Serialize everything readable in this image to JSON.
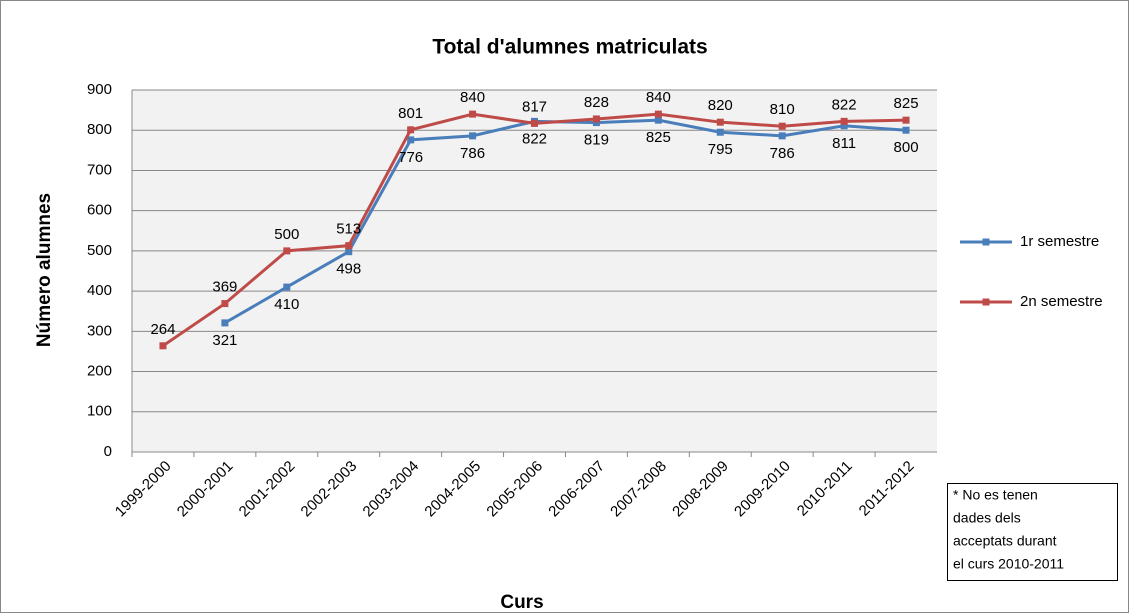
{
  "chart_data": {
    "type": "line",
    "title": "Total d'alumnes matriculats",
    "x_label": "Curs",
    "y_label": "Número alumnes",
    "categories": [
      "1999-2000",
      "2000-2001",
      "2001-2002",
      "2002-2003",
      "2003-2004",
      "2004-2005",
      "2005-2006",
      "2006-2007",
      "2007-2008",
      "2008-2009",
      "2009-2010",
      "2010-2011",
      "2011-2012"
    ],
    "series": [
      {
        "name": "1r semestre",
        "color": "#4a7ebb",
        "values": [
          null,
          321,
          410,
          498,
          776,
          786,
          822,
          819,
          825,
          795,
          786,
          811,
          800
        ]
      },
      {
        "name": "2n semestre",
        "color": "#be4b48",
        "values": [
          264,
          369,
          500,
          513,
          801,
          840,
          817,
          828,
          840,
          820,
          810,
          822,
          825
        ]
      }
    ],
    "ylim": [
      0,
      900
    ],
    "yticks": [
      0,
      100,
      200,
      300,
      400,
      500,
      600,
      700,
      800,
      900
    ],
    "grid": true,
    "legend": "right",
    "note": [
      "* No es tenen",
      "dades dels",
      "acceptats durant",
      "el curs 2010-2011"
    ]
  }
}
